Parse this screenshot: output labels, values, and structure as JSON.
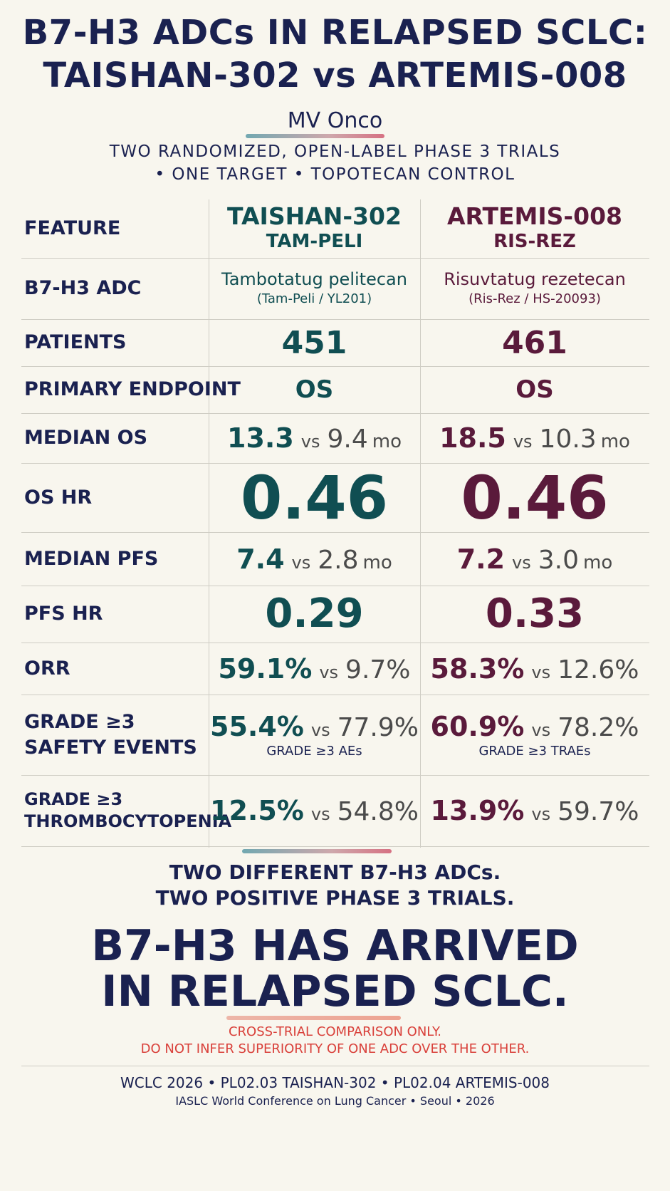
{
  "header": {
    "title_line1": "B7-H3 ADCs IN RELAPSED SCLC:",
    "title_line2": "TAISHAN-302 vs ARTEMIS-008",
    "brand": "MV Onco",
    "subtitle_line1": "TWO RANDOMIZED, OPEN-LABEL PHASE 3 TRIALS",
    "subtitle_line2": "• ONE TARGET • TOPOTECAN CONTROL"
  },
  "table": {
    "feature_header": "FEATURE",
    "trial_a": {
      "name": "TAISHAN-302",
      "drug_short": "TAM-PELI",
      "color": "#104e52"
    },
    "trial_b": {
      "name": "ARTEMIS-008",
      "drug_short": "RIS-REZ",
      "color": "#5a1a3b"
    },
    "rows": {
      "adc": {
        "label": "B7-H3 ADC",
        "a_name": "Tambotatug pelitecan",
        "a_alias": "(Tam-Peli / YL201)",
        "b_name": "Risuvtatug rezetecan",
        "b_alias": "(Ris-Rez / HS-20093)"
      },
      "patients": {
        "label": "PATIENTS",
        "a": "451",
        "b": "461"
      },
      "endpoint": {
        "label": "PRIMARY ENDPOINT",
        "a": "OS",
        "b": "OS"
      },
      "median_os": {
        "label": "MEDIAN OS",
        "a1": "13.3",
        "a2": "9.4",
        "b1": "18.5",
        "b2": "10.3",
        "unit": "mo",
        "vs": "vs"
      },
      "os_hr": {
        "label": "OS HR",
        "a": "0.46",
        "b": "0.46"
      },
      "median_pfs": {
        "label": "MEDIAN PFS",
        "a1": "7.4",
        "a2": "2.8",
        "b1": "7.2",
        "b2": "3.0",
        "unit": "mo",
        "vs": "vs"
      },
      "pfs_hr": {
        "label": "PFS HR",
        "a": "0.29",
        "b": "0.33"
      },
      "orr": {
        "label": "ORR",
        "a1": "59.1%",
        "a2": "9.7%",
        "b1": "58.3%",
        "b2": "12.6%",
        "vs": "vs"
      },
      "safety": {
        "label_line1": "GRADE ≥3",
        "label_line2": "SAFETY EVENTS",
        "a1": "55.4%",
        "a2": "77.9%",
        "a_note": "GRADE ≥3 AEs",
        "b1": "60.9%",
        "b2": "78.2%",
        "b_note": "GRADE ≥3 TRAEs",
        "vs": "vs"
      },
      "thrombo": {
        "label_line1": "GRADE ≥3",
        "label_line2": "THROMBOCYTOPENIA",
        "a1": "12.5%",
        "a2": "54.8%",
        "b1": "13.9%",
        "b2": "59.7%",
        "vs": "vs"
      }
    }
  },
  "closing": {
    "line1": "TWO DIFFERENT B7-H3 ADCs.",
    "line2": "TWO POSITIVE PHASE 3 TRIALS.",
    "big_line1": "B7-H3 HAS ARRIVED",
    "big_line2": "IN RELAPSED SCLC."
  },
  "disclaimer": {
    "line1": "CROSS-TRIAL COMPARISON ONLY.",
    "line2": "DO NOT INFER SUPERIORITY OF ONE ADC OVER THE OTHER."
  },
  "footer": {
    "line1": "WCLC 2026 • PL02.03 TAISHAN-302 • PL02.04 ARTEMIS-008",
    "line2": "IASLC World Conference on Lung Cancer • Seoul • 2026"
  }
}
